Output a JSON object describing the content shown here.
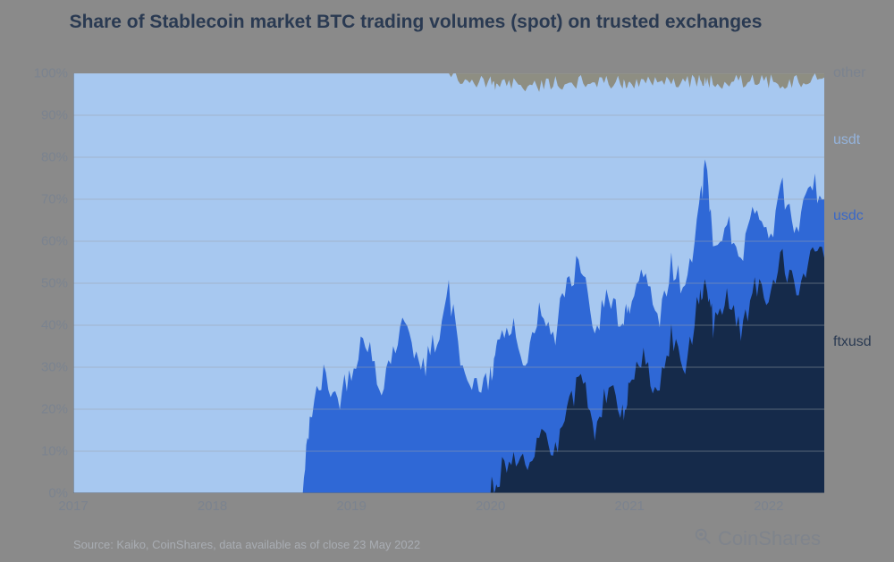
{
  "title": "Share of Stablecoin market BTC trading volumes (spot) on trusted exchanges",
  "source": "Source: Kaiko, CoinShares, data available as of close 23 May 2022",
  "brand": "CoinShares",
  "chart": {
    "type": "stacked-area",
    "background_color": "#8a8a8a",
    "plot_background_visible": false,
    "title_color": "#2a3a52",
    "title_fontsize": 21,
    "label_color": "#7b838f",
    "label_fontsize": 15,
    "grid_color": "#9aa0a7",
    "grid_width": 1,
    "ylim": [
      0,
      100
    ],
    "y_ticks": [
      0,
      10,
      20,
      30,
      40,
      50,
      60,
      70,
      80,
      90,
      100
    ],
    "y_tick_format_suffix": "%",
    "x_min_year": 2017.0,
    "x_max_year": 2022.4,
    "x_ticks": [
      2017,
      2018,
      2019,
      2020,
      2021,
      2022
    ],
    "series_order_bottom_to_top": [
      "ftxusd",
      "usdc",
      "usdt",
      "other"
    ],
    "series": {
      "ftxusd": {
        "label": "ftxusd",
        "color": "#152a4a",
        "label_color": "#2a3a52",
        "label_y_pct": 36
      },
      "usdc": {
        "label": "usdc",
        "color": "#2f68d6",
        "label_color": "#3a68c8",
        "label_y_pct": 66
      },
      "usdt": {
        "label": "usdt",
        "color": "#a7c8f0",
        "label_color": "#94b3dc",
        "label_y_pct": 84
      },
      "other": {
        "label": "other",
        "color": "#8e8e82",
        "label_color": "#7b838f",
        "label_y_pct": 100
      }
    },
    "data_points": [
      {
        "x": 2017.0,
        "ftxusd": 0,
        "usdc": 0,
        "other": 0
      },
      {
        "x": 2017.5,
        "ftxusd": 0,
        "usdc": 0,
        "other": 0
      },
      {
        "x": 2018.0,
        "ftxusd": 0,
        "usdc": 0,
        "other": 0
      },
      {
        "x": 2018.5,
        "ftxusd": 0,
        "usdc": 0,
        "other": 0
      },
      {
        "x": 2018.65,
        "ftxusd": 0,
        "usdc": 0,
        "other": 0
      },
      {
        "x": 2018.7,
        "ftxusd": 0,
        "usdc": 18,
        "other": 0
      },
      {
        "x": 2018.8,
        "ftxusd": 0,
        "usdc": 28,
        "other": 0
      },
      {
        "x": 2018.9,
        "ftxusd": 0,
        "usdc": 22,
        "other": 0
      },
      {
        "x": 2019.0,
        "ftxusd": 0,
        "usdc": 30,
        "other": 0
      },
      {
        "x": 2019.1,
        "ftxusd": 0,
        "usdc": 38,
        "other": 0
      },
      {
        "x": 2019.2,
        "ftxusd": 0,
        "usdc": 25,
        "other": 0
      },
      {
        "x": 2019.3,
        "ftxusd": 0,
        "usdc": 34,
        "other": 0
      },
      {
        "x": 2019.4,
        "ftxusd": 0,
        "usdc": 42,
        "other": 0
      },
      {
        "x": 2019.5,
        "ftxusd": 0,
        "usdc": 28,
        "other": 0
      },
      {
        "x": 2019.6,
        "ftxusd": 0,
        "usdc": 36,
        "other": 0
      },
      {
        "x": 2019.7,
        "ftxusd": 0,
        "usdc": 48,
        "other": 0
      },
      {
        "x": 2019.8,
        "ftxusd": 0,
        "usdc": 30,
        "other": 1
      },
      {
        "x": 2019.9,
        "ftxusd": 0,
        "usdc": 24,
        "other": 2
      },
      {
        "x": 2020.0,
        "ftxusd": 0,
        "usdc": 28,
        "other": 2
      },
      {
        "x": 2020.05,
        "ftxusd": 4,
        "usdc": 34,
        "other": 3
      },
      {
        "x": 2020.15,
        "ftxusd": 10,
        "usdc": 40,
        "other": 2
      },
      {
        "x": 2020.25,
        "ftxusd": 6,
        "usdc": 30,
        "other": 4
      },
      {
        "x": 2020.35,
        "ftxusd": 14,
        "usdc": 44,
        "other": 3
      },
      {
        "x": 2020.45,
        "ftxusd": 9,
        "usdc": 36,
        "other": 2
      },
      {
        "x": 2020.55,
        "ftxusd": 18,
        "usdc": 50,
        "other": 3
      },
      {
        "x": 2020.65,
        "ftxusd": 30,
        "usdc": 55,
        "other": 2
      },
      {
        "x": 2020.75,
        "ftxusd": 15,
        "usdc": 38,
        "other": 3
      },
      {
        "x": 2020.85,
        "ftxusd": 26,
        "usdc": 48,
        "other": 2
      },
      {
        "x": 2020.95,
        "ftxusd": 20,
        "usdc": 40,
        "other": 2
      },
      {
        "x": 2021.0,
        "ftxusd": 24,
        "usdc": 44,
        "other": 2
      },
      {
        "x": 2021.1,
        "ftxusd": 32,
        "usdc": 52,
        "other": 2
      },
      {
        "x": 2021.2,
        "ftxusd": 22,
        "usdc": 40,
        "other": 2
      },
      {
        "x": 2021.3,
        "ftxusd": 38,
        "usdc": 55,
        "other": 2
      },
      {
        "x": 2021.4,
        "ftxusd": 30,
        "usdc": 48,
        "other": 2
      },
      {
        "x": 2021.5,
        "ftxusd": 46,
        "usdc": 68,
        "other": 2
      },
      {
        "x": 2021.55,
        "ftxusd": 52,
        "usdc": 78,
        "other": 2
      },
      {
        "x": 2021.6,
        "ftxusd": 40,
        "usdc": 60,
        "other": 2
      },
      {
        "x": 2021.7,
        "ftxusd": 48,
        "usdc": 64,
        "other": 2
      },
      {
        "x": 2021.8,
        "ftxusd": 38,
        "usdc": 56,
        "other": 2
      },
      {
        "x": 2021.9,
        "ftxusd": 50,
        "usdc": 70,
        "other": 2
      },
      {
        "x": 2022.0,
        "ftxusd": 44,
        "usdc": 60,
        "other": 2
      },
      {
        "x": 2022.1,
        "ftxusd": 56,
        "usdc": 72,
        "other": 2
      },
      {
        "x": 2022.2,
        "ftxusd": 48,
        "usdc": 62,
        "other": 2
      },
      {
        "x": 2022.3,
        "ftxusd": 58,
        "usdc": 74,
        "other": 1
      },
      {
        "x": 2022.4,
        "ftxusd": 56,
        "usdc": 70,
        "other": 1
      }
    ],
    "noise_amplitude_pct": 3.5,
    "noise_points_between": 6
  }
}
